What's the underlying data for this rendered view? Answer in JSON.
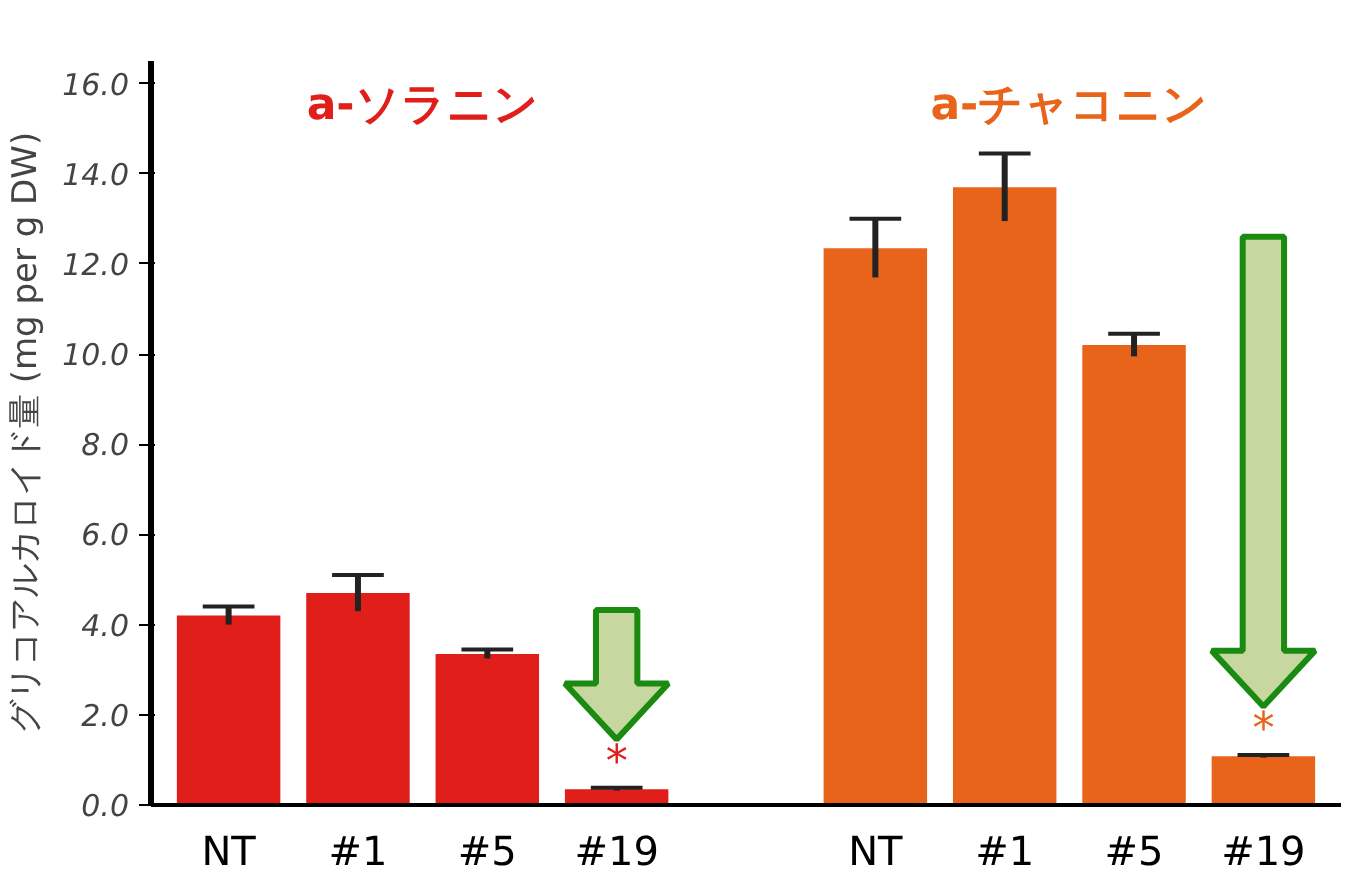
{
  "chart_data": {
    "type": "bar",
    "ylabel": "グリコアルカロイド量 (mg per g DW)",
    "categories": [
      "NT",
      "#1",
      "#5",
      "#19",
      null,
      "NT",
      "#1",
      "#5",
      "#19"
    ],
    "series": [
      {
        "name": "a-ソラニン",
        "color": "#e01e1a",
        "values": [
          4.2,
          4.7,
          3.35,
          0.35,
          null,
          null,
          null,
          null,
          null
        ],
        "errors": [
          0.2,
          0.4,
          0.1,
          0.03,
          null,
          null,
          null,
          null,
          null
        ]
      },
      {
        "name": "a-チャコニン",
        "color": "#e8641a",
        "values": [
          null,
          null,
          null,
          null,
          null,
          12.35,
          13.7,
          10.2,
          1.08
        ],
        "errors": [
          null,
          null,
          null,
          null,
          null,
          0.65,
          0.75,
          0.25,
          0.03
        ]
      }
    ],
    "annotations": [
      "*",
      "*"
    ],
    "ylim": [
      0,
      16.5
    ],
    "yticks": [
      {
        "value": 0,
        "label": "0.0"
      },
      {
        "value": 2,
        "label": "2.0"
      },
      {
        "value": 4,
        "label": "4.0"
      },
      {
        "value": 6,
        "label": "6.0"
      },
      {
        "value": 8,
        "label": "8.0"
      },
      {
        "value": 10,
        "label": "10.0"
      },
      {
        "value": 12,
        "label": "12.0"
      },
      {
        "value": 14,
        "label": "14.0"
      },
      {
        "value": 16,
        "label": "16.0"
      }
    ],
    "grid": false
  }
}
